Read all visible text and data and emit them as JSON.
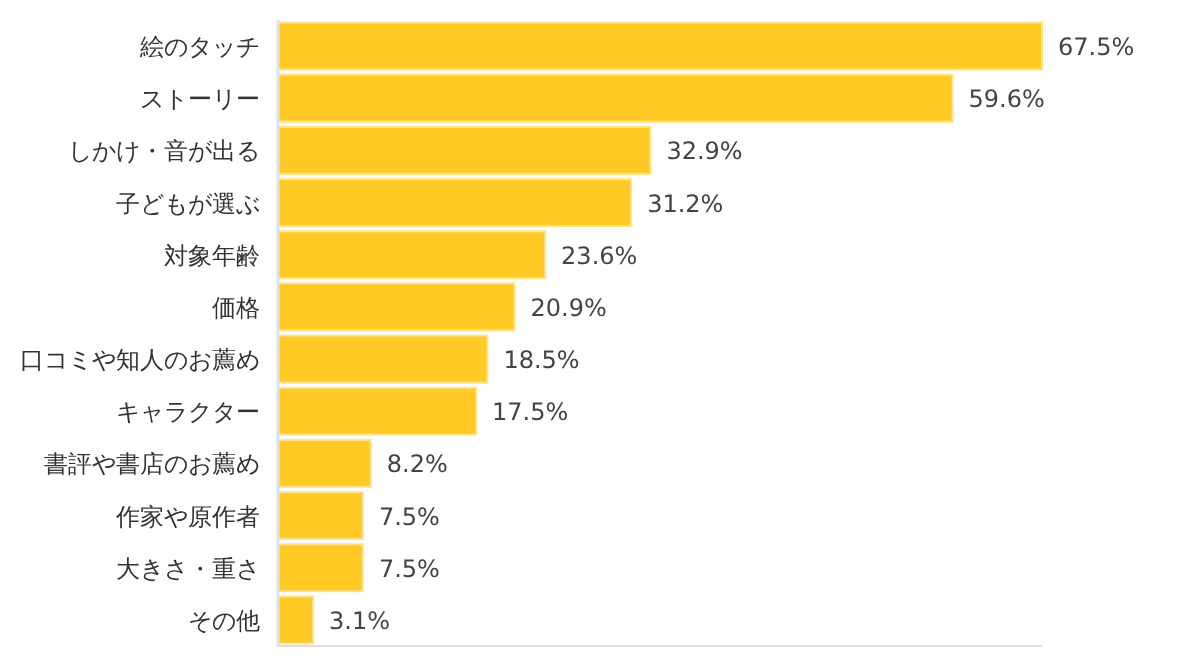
{
  "chart_data": {
    "type": "bar",
    "orientation": "horizontal",
    "color": "#ffc926",
    "categories": [
      "絵のタッチ",
      "ストーリー",
      "しかけ・音が出る",
      "子どもが選ぶ",
      "対象年齢",
      "価格",
      "口コミや知人のお薦め",
      "キャラクター",
      "書評や書店のお薦め",
      "作家や原作者",
      "大きさ・重さ",
      "その他"
    ],
    "values": [
      67.5,
      59.6,
      32.9,
      31.2,
      23.6,
      20.9,
      18.5,
      17.5,
      8.2,
      7.5,
      7.5,
      3.1
    ],
    "value_labels": [
      "67.5%",
      "59.6%",
      "32.9%",
      "31.2%",
      "23.6%",
      "20.9%",
      "18.5%",
      "17.5%",
      "8.2%",
      "7.5%",
      "7.5%",
      "3.1%"
    ]
  }
}
